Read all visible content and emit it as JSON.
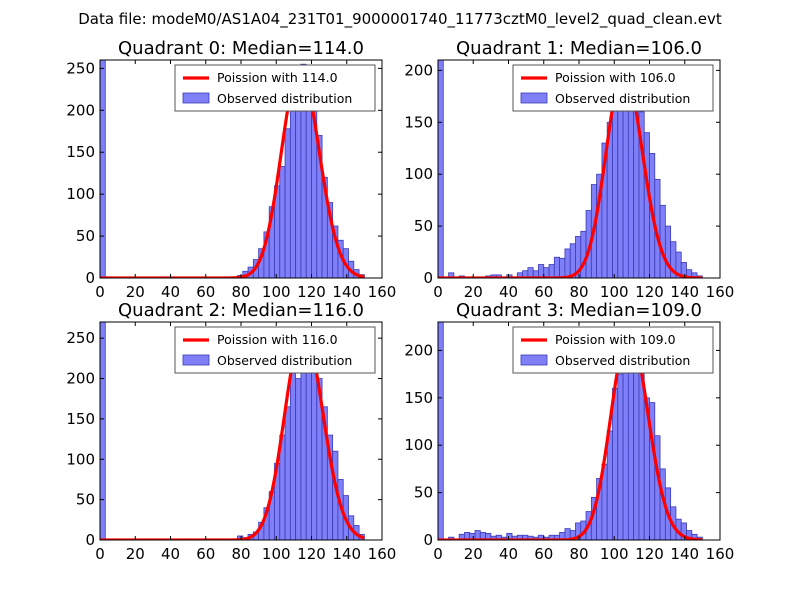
{
  "suptitle": "Data file: modeM0/AS1A04_231T01_9000001740_11773cztM0_level2_quad_clean.evt",
  "colors": {
    "bar_fill": "#7f7ff7",
    "bar_edge": "#3b3bb8",
    "curve": "#ff0000",
    "axes": "#000000",
    "legend_edge": "#555555"
  },
  "chart_data": [
    {
      "type": "bar",
      "title": "Quadrant 0: Median=114.0",
      "legend": [
        "Poission with 114.0",
        "Observed distribution"
      ],
      "xlim": [
        0,
        160
      ],
      "ylim": [
        0,
        260
      ],
      "xticks": [
        0,
        20,
        40,
        60,
        80,
        100,
        120,
        140,
        160
      ],
      "yticks": [
        0,
        50,
        100,
        150,
        200,
        250
      ],
      "bin_width": 3,
      "bins": [
        {
          "x": 0,
          "count": 260
        },
        {
          "x": 78,
          "count": 3
        },
        {
          "x": 81,
          "count": 8
        },
        {
          "x": 84,
          "count": 13
        },
        {
          "x": 87,
          "count": 22
        },
        {
          "x": 90,
          "count": 35
        },
        {
          "x": 93,
          "count": 55
        },
        {
          "x": 96,
          "count": 85
        },
        {
          "x": 99,
          "count": 110
        },
        {
          "x": 102,
          "count": 133
        },
        {
          "x": 105,
          "count": 178
        },
        {
          "x": 108,
          "count": 210
        },
        {
          "x": 111,
          "count": 248
        },
        {
          "x": 114,
          "count": 255
        },
        {
          "x": 117,
          "count": 230
        },
        {
          "x": 120,
          "count": 215
        },
        {
          "x": 123,
          "count": 170
        },
        {
          "x": 126,
          "count": 120
        },
        {
          "x": 129,
          "count": 90
        },
        {
          "x": 132,
          "count": 62
        },
        {
          "x": 135,
          "count": 45
        },
        {
          "x": 138,
          "count": 35
        },
        {
          "x": 141,
          "count": 20
        },
        {
          "x": 144,
          "count": 10
        },
        {
          "x": 147,
          "count": 4
        }
      ],
      "poisson": {
        "mean": 114.0,
        "peak": 250
      }
    },
    {
      "type": "bar",
      "title": "Quadrant 1: Median=106.0",
      "legend": [
        "Poission with 106.0",
        "Observed distribution"
      ],
      "xlim": [
        0,
        160
      ],
      "ylim": [
        0,
        210
      ],
      "xticks": [
        0,
        20,
        40,
        60,
        80,
        100,
        120,
        140,
        160
      ],
      "yticks": [
        0,
        50,
        100,
        150,
        200
      ],
      "bin_width": 3,
      "bins": [
        {
          "x": 0,
          "count": 210
        },
        {
          "x": 6,
          "count": 5
        },
        {
          "x": 12,
          "count": 2
        },
        {
          "x": 27,
          "count": 2
        },
        {
          "x": 30,
          "count": 3
        },
        {
          "x": 33,
          "count": 3
        },
        {
          "x": 39,
          "count": 3
        },
        {
          "x": 45,
          "count": 5
        },
        {
          "x": 48,
          "count": 7
        },
        {
          "x": 51,
          "count": 10
        },
        {
          "x": 54,
          "count": 7
        },
        {
          "x": 57,
          "count": 13
        },
        {
          "x": 60,
          "count": 10
        },
        {
          "x": 63,
          "count": 13
        },
        {
          "x": 66,
          "count": 20
        },
        {
          "x": 69,
          "count": 19
        },
        {
          "x": 72,
          "count": 28
        },
        {
          "x": 75,
          "count": 33
        },
        {
          "x": 78,
          "count": 40
        },
        {
          "x": 81,
          "count": 45
        },
        {
          "x": 84,
          "count": 65
        },
        {
          "x": 87,
          "count": 90
        },
        {
          "x": 90,
          "count": 100
        },
        {
          "x": 93,
          "count": 130
        },
        {
          "x": 96,
          "count": 150
        },
        {
          "x": 99,
          "count": 180
        },
        {
          "x": 102,
          "count": 195
        },
        {
          "x": 105,
          "count": 200
        },
        {
          "x": 108,
          "count": 200
        },
        {
          "x": 111,
          "count": 185
        },
        {
          "x": 114,
          "count": 160
        },
        {
          "x": 117,
          "count": 140
        },
        {
          "x": 120,
          "count": 120
        },
        {
          "x": 123,
          "count": 95
        },
        {
          "x": 126,
          "count": 70
        },
        {
          "x": 129,
          "count": 50
        },
        {
          "x": 132,
          "count": 35
        },
        {
          "x": 135,
          "count": 25
        },
        {
          "x": 138,
          "count": 15
        },
        {
          "x": 141,
          "count": 8
        },
        {
          "x": 144,
          "count": 5
        },
        {
          "x": 147,
          "count": 2
        }
      ],
      "poisson": {
        "mean": 106.0,
        "peak": 200
      }
    },
    {
      "type": "bar",
      "title": "Quadrant 2: Median=116.0",
      "legend": [
        "Poission with 116.0",
        "Observed distribution"
      ],
      "xlim": [
        0,
        160
      ],
      "ylim": [
        0,
        270
      ],
      "xticks": [
        0,
        20,
        40,
        60,
        80,
        100,
        120,
        140,
        160
      ],
      "yticks": [
        0,
        50,
        100,
        150,
        200,
        250
      ],
      "bin_width": 3,
      "bins": [
        {
          "x": 0,
          "count": 270
        },
        {
          "x": 78,
          "count": 5
        },
        {
          "x": 81,
          "count": 3
        },
        {
          "x": 84,
          "count": 7
        },
        {
          "x": 87,
          "count": 10
        },
        {
          "x": 90,
          "count": 22
        },
        {
          "x": 93,
          "count": 40
        },
        {
          "x": 96,
          "count": 60
        },
        {
          "x": 99,
          "count": 95
        },
        {
          "x": 102,
          "count": 130
        },
        {
          "x": 105,
          "count": 165
        },
        {
          "x": 108,
          "count": 235
        },
        {
          "x": 111,
          "count": 200
        },
        {
          "x": 114,
          "count": 245
        },
        {
          "x": 117,
          "count": 258
        },
        {
          "x": 120,
          "count": 235
        },
        {
          "x": 123,
          "count": 200
        },
        {
          "x": 126,
          "count": 165
        },
        {
          "x": 129,
          "count": 130
        },
        {
          "x": 132,
          "count": 110
        },
        {
          "x": 135,
          "count": 75
        },
        {
          "x": 138,
          "count": 55
        },
        {
          "x": 141,
          "count": 30
        },
        {
          "x": 144,
          "count": 18
        },
        {
          "x": 147,
          "count": 7
        }
      ],
      "poisson": {
        "mean": 116.0,
        "peak": 260
      }
    },
    {
      "type": "bar",
      "title": "Quadrant 3: Median=109.0",
      "legend": [
        "Poission with 109.0",
        "Observed distribution"
      ],
      "xlim": [
        0,
        160
      ],
      "ylim": [
        0,
        230
      ],
      "xticks": [
        0,
        20,
        40,
        60,
        80,
        100,
        120,
        140,
        160
      ],
      "yticks": [
        0,
        50,
        100,
        150,
        200
      ],
      "bin_width": 3,
      "bins": [
        {
          "x": 0,
          "count": 230
        },
        {
          "x": 6,
          "count": 3
        },
        {
          "x": 12,
          "count": 6
        },
        {
          "x": 15,
          "count": 8
        },
        {
          "x": 18,
          "count": 7
        },
        {
          "x": 21,
          "count": 10
        },
        {
          "x": 24,
          "count": 8
        },
        {
          "x": 27,
          "count": 7
        },
        {
          "x": 30,
          "count": 4
        },
        {
          "x": 33,
          "count": 5
        },
        {
          "x": 36,
          "count": 3
        },
        {
          "x": 39,
          "count": 7
        },
        {
          "x": 42,
          "count": 4
        },
        {
          "x": 45,
          "count": 5
        },
        {
          "x": 48,
          "count": 5
        },
        {
          "x": 51,
          "count": 4
        },
        {
          "x": 54,
          "count": 3
        },
        {
          "x": 57,
          "count": 5
        },
        {
          "x": 60,
          "count": 3
        },
        {
          "x": 63,
          "count": 5
        },
        {
          "x": 66,
          "count": 5
        },
        {
          "x": 69,
          "count": 8
        },
        {
          "x": 72,
          "count": 12
        },
        {
          "x": 75,
          "count": 10
        },
        {
          "x": 78,
          "count": 18
        },
        {
          "x": 81,
          "count": 20
        },
        {
          "x": 84,
          "count": 30
        },
        {
          "x": 87,
          "count": 45
        },
        {
          "x": 90,
          "count": 65
        },
        {
          "x": 93,
          "count": 80
        },
        {
          "x": 96,
          "count": 115
        },
        {
          "x": 99,
          "count": 160
        },
        {
          "x": 102,
          "count": 175
        },
        {
          "x": 105,
          "count": 200
        },
        {
          "x": 108,
          "count": 218
        },
        {
          "x": 111,
          "count": 210
        },
        {
          "x": 114,
          "count": 200
        },
        {
          "x": 117,
          "count": 150
        },
        {
          "x": 120,
          "count": 145
        },
        {
          "x": 123,
          "count": 110
        },
        {
          "x": 126,
          "count": 75
        },
        {
          "x": 129,
          "count": 55
        },
        {
          "x": 132,
          "count": 35
        },
        {
          "x": 135,
          "count": 22
        },
        {
          "x": 138,
          "count": 18
        },
        {
          "x": 141,
          "count": 10
        },
        {
          "x": 144,
          "count": 6
        },
        {
          "x": 147,
          "count": 3
        }
      ],
      "poisson": {
        "mean": 109.0,
        "peak": 220
      }
    }
  ]
}
